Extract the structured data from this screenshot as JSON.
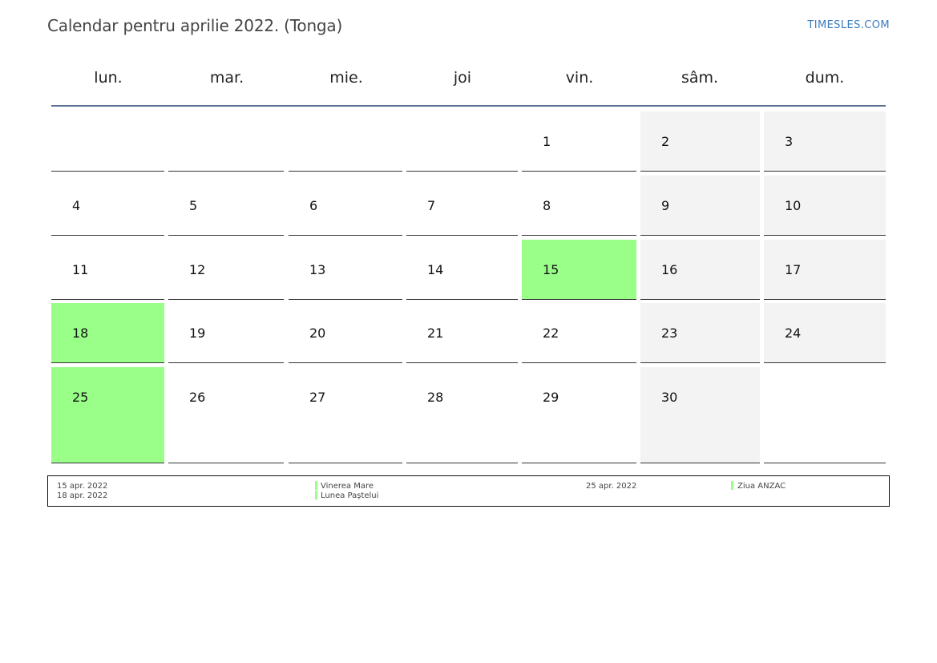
{
  "title": "Calendar pentru aprilie 2022. (Tonga)",
  "site": "TIMESLES.COM",
  "colors": {
    "holiday": "#99ff88",
    "weekend": "#f3f3f3",
    "header_rule": "#5b7292",
    "link": "#3a7bbf"
  },
  "weekdays": [
    "lun.",
    "mar.",
    "mie.",
    "joi",
    "vin.",
    "sâm.",
    "dum."
  ],
  "weeks": [
    [
      {
        "day": ""
      },
      {
        "day": ""
      },
      {
        "day": ""
      },
      {
        "day": ""
      },
      {
        "day": "1"
      },
      {
        "day": "2",
        "weekend": true
      },
      {
        "day": "3",
        "weekend": true
      }
    ],
    [
      {
        "day": "4"
      },
      {
        "day": "5"
      },
      {
        "day": "6"
      },
      {
        "day": "7"
      },
      {
        "day": "8"
      },
      {
        "day": "9",
        "weekend": true
      },
      {
        "day": "10",
        "weekend": true
      }
    ],
    [
      {
        "day": "11"
      },
      {
        "day": "12"
      },
      {
        "day": "13"
      },
      {
        "day": "14"
      },
      {
        "day": "15",
        "holiday": true
      },
      {
        "day": "16",
        "weekend": true
      },
      {
        "day": "17",
        "weekend": true
      }
    ],
    [
      {
        "day": "18",
        "holiday": true
      },
      {
        "day": "19"
      },
      {
        "day": "20"
      },
      {
        "day": "21"
      },
      {
        "day": "22"
      },
      {
        "day": "23",
        "weekend": true
      },
      {
        "day": "24",
        "weekend": true
      }
    ],
    [
      {
        "day": "25",
        "holiday": true
      },
      {
        "day": "26"
      },
      {
        "day": "27"
      },
      {
        "day": "28"
      },
      {
        "day": "29"
      },
      {
        "day": "30",
        "weekend": true
      },
      {
        "day": ""
      }
    ]
  ],
  "legend": [
    {
      "date": "15 apr. 2022",
      "name": "Vinerea Mare"
    },
    {
      "date": "18 apr. 2022",
      "name": "Lunea Paștelui"
    },
    {
      "date": "25 apr. 2022",
      "name": "Ziua ANZAC"
    }
  ]
}
